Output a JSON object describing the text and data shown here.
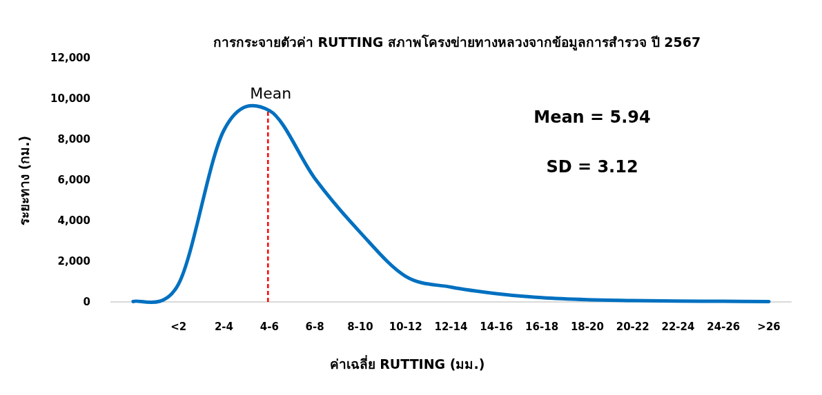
{
  "chart_data": {
    "type": "line",
    "title": "การกระจายตัวค่า RUTTING สภาพโครงข่ายทางหลวงจากข้อมูลการสำรวจ ปี 2567",
    "xlabel": "ค่าเฉลี่ย RUTTING (มม.)",
    "ylabel": "ระยะทาง (กม.)",
    "categories": [
      null,
      "<2",
      "2-4",
      "4-6",
      "6-8",
      "8-10",
      "10-12",
      "12-14",
      "14-16",
      "16-18",
      "18-20",
      "20-22",
      "22-24",
      "24-26",
      ">26"
    ],
    "series": [
      {
        "color": "#0070c0",
        "values": [
          20,
          880,
          8450,
          9410,
          6080,
          3420,
          1260,
          730,
          410,
          210,
          110,
          70,
          40,
          30,
          20
        ]
      }
    ],
    "ylim": [
      0,
      12000
    ],
    "yticks": [
      {
        "value": 0,
        "label": "0"
      },
      {
        "value": 2000,
        "label": "2,000"
      },
      {
        "value": 4000,
        "label": "4,000"
      },
      {
        "value": 6000,
        "label": "6,000"
      },
      {
        "value": 8000,
        "label": "8,000"
      },
      {
        "value": 10000,
        "label": "10,000"
      },
      {
        "value": 12000,
        "label": "12,000"
      }
    ],
    "ref_lines": [
      {
        "axis": "x",
        "value": "4-6",
        "label": "Mean",
        "color": "#ff0000",
        "line_style": "dashed"
      }
    ],
    "annotations": [
      "Mean = 5.94",
      "SD = 3.12"
    ]
  }
}
